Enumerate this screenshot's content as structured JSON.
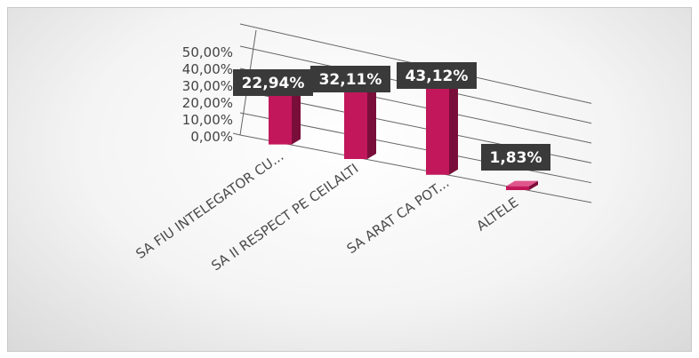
{
  "chart_data": {
    "type": "bar",
    "title": "",
    "xlabel": "",
    "ylabel": "",
    "categories": [
      "SA FIU INTELEGATOR CU...",
      "SA II RESPECT PE CEILALTI",
      "SA ARAT CA POT...",
      "ALTELE"
    ],
    "values": [
      22.94,
      32.11,
      43.12,
      1.83
    ],
    "value_labels": [
      "22,94%",
      "32,11%",
      "43,12%",
      "1,83%"
    ],
    "y_ticks": [
      "0,00%",
      "10,00%",
      "20,00%",
      "30,00%",
      "40,00%",
      "50,00%"
    ],
    "ylim": [
      0,
      50
    ],
    "grid": true,
    "legend": "none",
    "style": "3d-perspective",
    "colors": {
      "bar_front": "#c2185b",
      "bar_side": "#7a0e3a",
      "bar_top": "#e0568c",
      "label_bg": "#3a3a3a",
      "label_text": "#ffffff",
      "grid": "#666666"
    }
  }
}
